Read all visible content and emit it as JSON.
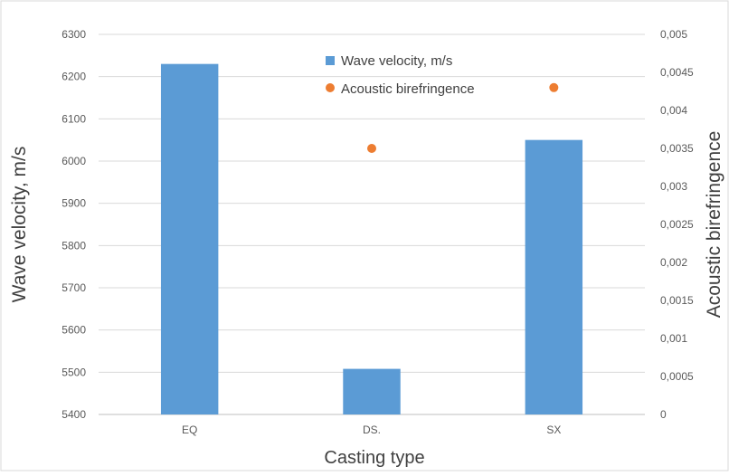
{
  "chart_data": {
    "type": "bar",
    "categories": [
      "EQ",
      "DS.",
      "SX"
    ],
    "xlabel": "Casting type",
    "ylabel": "Wave velocity, m/s",
    "y2label": "Acoustic birefringence",
    "ylim": [
      5400,
      6300
    ],
    "y2lim": [
      0,
      0.005
    ],
    "yticks": [
      "5400",
      "5500",
      "5600",
      "5700",
      "5800",
      "5900",
      "6000",
      "6100",
      "6200",
      "6300"
    ],
    "y2ticks": [
      "0",
      "0,0005",
      "0,001",
      "0,0015",
      "0,002",
      "0,0025",
      "0,003",
      "0,0035",
      "0,004",
      "0,0045",
      "0,005"
    ],
    "grid": true,
    "legend_position": "top-center",
    "series": [
      {
        "name": "Wave velocity, m/s",
        "kind": "bar",
        "axis": "left",
        "color": "#5B9BD5",
        "values": [
          6230,
          5508,
          6050
        ]
      },
      {
        "name": "Acoustic birefringence",
        "kind": "scatter",
        "axis": "right",
        "color": "#ED7D31",
        "values": [
          null,
          0.0035,
          0.0043
        ]
      }
    ]
  }
}
